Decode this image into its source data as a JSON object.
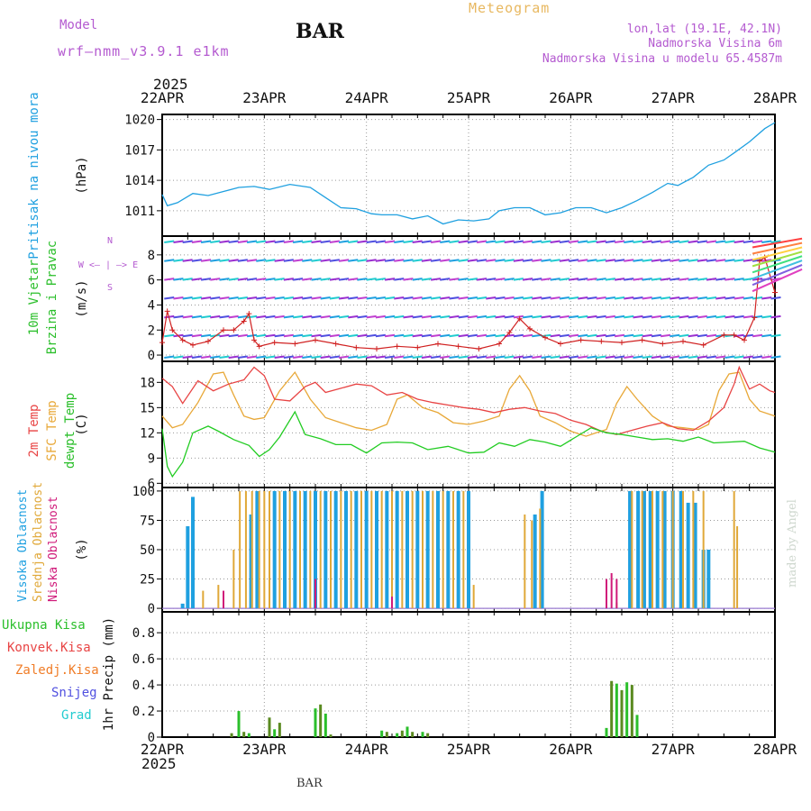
{
  "header": {
    "model_label": "Model",
    "model_name": "wrf—nmm_v3.9.1  e1km",
    "station": "BAR",
    "chart_title": "Meteogram",
    "coords": "lon,lat (19.1E, 42.1N)",
    "elevation": "Nadmorska Visina 6m",
    "model_elevation": "Nadmorska Visina u modelu 65.4587m",
    "footer_station": "BAR",
    "credit": "made by Angel",
    "year_top": "2025",
    "year_bottom": "2025"
  },
  "colors": {
    "pressure": "#1fa0e0",
    "temp2m": "#e84444",
    "sfctemp": "#e8a838",
    "dewpt": "#22cc22",
    "cloud_high": "#1fa0e0",
    "cloud_mid": "#e0a838",
    "cloud_low": "#d01a7a",
    "precip_total": "#2bbf2b",
    "precip_convective": "#e84444",
    "precip_frozen": "#f07d28",
    "snow": "#5050e0",
    "graupel": "#22ccd0",
    "purple_text": "#b45ad0",
    "title_text": "#e8b860"
  },
  "chart_data": [
    {
      "type": "line",
      "x": [
        "22APR",
        "23APR",
        "24APR",
        "25APR",
        "26APR",
        "27APR",
        "28APR"
      ],
      "ylabel": "(hPa)",
      "series_label": "Pritisak na nivou mora",
      "ylim": [
        1008.5,
        1020.5
      ],
      "yticks": [
        1011,
        1014,
        1017,
        1020
      ],
      "grid": true,
      "series": [
        {
          "name": "Pritisak na nivou mora",
          "x": [
            0,
            0.05,
            0.15,
            0.3,
            0.45,
            0.6,
            0.75,
            0.9,
            1.05,
            1.25,
            1.45,
            1.6,
            1.75,
            1.9,
            2.05,
            2.15,
            2.3,
            2.45,
            2.6,
            2.75,
            2.9,
            3.05,
            3.2,
            3.3,
            3.45,
            3.6,
            3.75,
            3.9,
            4.05,
            4.2,
            4.35,
            4.5,
            4.65,
            4.8,
            4.95,
            5.05,
            5.2,
            5.35,
            5.5,
            5.6,
            5.75,
            5.9,
            6.0
          ],
          "values": [
            1012.6,
            1011.5,
            1011.8,
            1012.7,
            1012.5,
            1012.9,
            1013.3,
            1013.4,
            1013.1,
            1013.6,
            1013.3,
            1012.3,
            1011.3,
            1011.2,
            1010.7,
            1010.6,
            1010.6,
            1010.2,
            1010.5,
            1009.7,
            1010.1,
            1010.0,
            1010.2,
            1011.0,
            1011.3,
            1011.3,
            1010.6,
            1010.8,
            1011.3,
            1011.3,
            1010.8,
            1011.3,
            1012.0,
            1012.8,
            1013.7,
            1013.5,
            1014.3,
            1015.5,
            1016.0,
            1016.7,
            1017.8,
            1019.1,
            1019.7
          ]
        }
      ]
    },
    {
      "type": "scatter",
      "x": [
        "22APR",
        "23APR",
        "24APR",
        "25APR",
        "26APR",
        "27APR",
        "28APR"
      ],
      "ylabel": "(m/s)",
      "series_label_1": "10m Vjetar",
      "series_label_2": "Brzina i Pravac",
      "direction_key": "W <— | —> E",
      "direction_n": "N",
      "direction_s": "S",
      "ylim": [
        -0.5,
        9.5
      ],
      "yticks": [
        0,
        2,
        4,
        6,
        8
      ],
      "grid": true,
      "series": [
        {
          "name": "wind speed",
          "x": [
            0,
            0.05,
            0.1,
            0.2,
            0.3,
            0.45,
            0.6,
            0.7,
            0.8,
            0.85,
            0.9,
            0.95,
            1.1,
            1.3,
            1.5,
            1.7,
            1.9,
            2.1,
            2.3,
            2.5,
            2.7,
            2.9,
            3.1,
            3.3,
            3.4,
            3.5,
            3.6,
            3.75,
            3.9,
            4.1,
            4.3,
            4.5,
            4.7,
            4.9,
            5.1,
            5.3,
            5.5,
            5.6,
            5.7,
            5.8,
            5.85,
            5.9,
            6.0
          ],
          "values": [
            1.0,
            3.5,
            2.0,
            1.2,
            0.8,
            1.1,
            2.0,
            2.0,
            2.7,
            3.3,
            1.2,
            0.7,
            1.0,
            0.9,
            1.2,
            0.9,
            0.6,
            0.5,
            0.7,
            0.6,
            0.9,
            0.7,
            0.5,
            0.9,
            1.8,
            2.9,
            2.1,
            1.4,
            0.9,
            1.2,
            1.1,
            1.0,
            1.2,
            0.9,
            1.1,
            0.8,
            1.6,
            1.6,
            1.2,
            3.0,
            7.5,
            7.8,
            5.0
          ]
        }
      ]
    },
    {
      "type": "line",
      "x": [
        "22APR",
        "23APR",
        "24APR",
        "25APR",
        "26APR",
        "27APR",
        "28APR"
      ],
      "ylabel": "(C)",
      "ylim": [
        5.5,
        20.5
      ],
      "yticks": [
        6,
        9,
        12,
        15,
        18
      ],
      "grid": true,
      "series": [
        {
          "name": "2m Temp",
          "x": [
            0,
            0.1,
            0.2,
            0.35,
            0.5,
            0.65,
            0.8,
            0.9,
            1.0,
            1.1,
            1.25,
            1.4,
            1.5,
            1.6,
            1.75,
            1.9,
            2.05,
            2.2,
            2.35,
            2.5,
            2.65,
            2.8,
            2.95,
            3.1,
            3.25,
            3.4,
            3.55,
            3.7,
            3.85,
            4.0,
            4.15,
            4.3,
            4.45,
            4.6,
            4.75,
            4.9,
            5.05,
            5.2,
            5.35,
            5.5,
            5.6,
            5.65,
            5.75,
            5.85,
            5.95,
            6.0
          ],
          "values": [
            18.5,
            17.5,
            15.5,
            18.2,
            17.0,
            17.8,
            18.3,
            19.8,
            18.8,
            16.0,
            15.8,
            17.5,
            18.0,
            16.8,
            17.3,
            17.8,
            17.6,
            16.5,
            16.8,
            16.0,
            15.6,
            15.3,
            15.0,
            14.8,
            14.4,
            14.8,
            15.0,
            14.6,
            14.3,
            13.5,
            13.0,
            12.2,
            11.8,
            12.3,
            12.8,
            13.2,
            12.5,
            12.3,
            13.4,
            15.0,
            17.8,
            19.8,
            17.2,
            17.8,
            17.0,
            16.8
          ]
        },
        {
          "name": "SFC Temp",
          "x": [
            0,
            0.1,
            0.2,
            0.35,
            0.5,
            0.6,
            0.7,
            0.8,
            0.9,
            1.0,
            1.15,
            1.3,
            1.45,
            1.6,
            1.75,
            1.9,
            2.05,
            2.2,
            2.3,
            2.4,
            2.55,
            2.7,
            2.85,
            3.0,
            3.15,
            3.3,
            3.4,
            3.5,
            3.6,
            3.7,
            3.85,
            4.0,
            4.15,
            4.25,
            4.35,
            4.45,
            4.55,
            4.65,
            4.8,
            4.95,
            5.1,
            5.25,
            5.35,
            5.45,
            5.55,
            5.65,
            5.75,
            5.85,
            6.0
          ],
          "values": [
            14.0,
            12.6,
            13.0,
            15.6,
            19.0,
            19.2,
            16.5,
            14.0,
            13.6,
            13.8,
            17.0,
            19.2,
            16.0,
            13.8,
            13.2,
            12.6,
            12.3,
            13.0,
            16.0,
            16.5,
            15.0,
            14.4,
            13.2,
            13.0,
            13.4,
            14.0,
            17.2,
            18.8,
            17.0,
            14.0,
            13.2,
            12.2,
            11.6,
            12.0,
            12.4,
            15.5,
            17.5,
            16.0,
            14.0,
            12.8,
            12.6,
            12.4,
            13.0,
            17.0,
            19.0,
            19.2,
            16.0,
            14.6,
            14.0
          ]
        },
        {
          "name": "dewpt Temp",
          "x": [
            0,
            0.05,
            0.1,
            0.2,
            0.3,
            0.45,
            0.55,
            0.7,
            0.85,
            0.95,
            1.05,
            1.15,
            1.3,
            1.4,
            1.55,
            1.7,
            1.85,
            2.0,
            2.15,
            2.3,
            2.45,
            2.6,
            2.8,
            3.0,
            3.15,
            3.3,
            3.45,
            3.6,
            3.75,
            3.9,
            4.05,
            4.2,
            4.35,
            4.5,
            4.65,
            4.8,
            4.95,
            5.1,
            5.25,
            5.4,
            5.55,
            5.7,
            5.85,
            6.0
          ],
          "values": [
            12.5,
            8.0,
            6.8,
            8.5,
            12.0,
            12.8,
            12.2,
            11.2,
            10.5,
            9.2,
            10.0,
            11.5,
            14.5,
            11.8,
            11.3,
            10.6,
            10.6,
            9.6,
            10.8,
            10.9,
            10.8,
            10.0,
            10.4,
            9.6,
            9.7,
            10.8,
            10.4,
            11.2,
            10.9,
            10.4,
            11.5,
            12.6,
            12.0,
            11.8,
            11.5,
            11.2,
            11.3,
            11.0,
            11.5,
            10.8,
            10.9,
            11.0,
            10.2,
            9.7
          ]
        }
      ]
    },
    {
      "type": "bar",
      "x": [
        "22APR",
        "23APR",
        "24APR",
        "25APR",
        "26APR",
        "27APR",
        "28APR"
      ],
      "ylabel": "(%)",
      "ylim": [
        -3,
        103
      ],
      "yticks": [
        0,
        25,
        50,
        75,
        100
      ],
      "grid": true,
      "series": [
        {
          "name": "Visoka Oblacnost",
          "x": [
            0.2,
            0.25,
            0.3,
            0.87,
            0.93,
            1.1,
            1.2,
            1.3,
            1.4,
            1.5,
            1.6,
            1.7,
            1.8,
            1.9,
            2.0,
            2.1,
            2.2,
            2.3,
            2.4,
            2.5,
            2.6,
            2.7,
            2.8,
            2.9,
            3.0,
            3.65,
            3.72,
            4.58,
            4.66,
            4.72,
            4.78,
            4.85,
            4.92,
            5.0,
            5.08,
            5.15,
            5.22,
            5.3,
            5.35
          ],
          "values": [
            4,
            70,
            95,
            80,
            100,
            100,
            100,
            100,
            100,
            100,
            100,
            100,
            100,
            100,
            100,
            100,
            100,
            100,
            100,
            100,
            100,
            100,
            100,
            100,
            100,
            80,
            100,
            100,
            100,
            100,
            100,
            100,
            100,
            100,
            100,
            90,
            90,
            50,
            50
          ]
        },
        {
          "name": "Srednja Oblacnost",
          "x": [
            0.4,
            0.55,
            0.7,
            0.76,
            0.82,
            0.88,
            0.95,
            1.0,
            1.05,
            1.15,
            1.25,
            1.35,
            1.45,
            1.55,
            1.65,
            1.75,
            1.85,
            1.95,
            2.05,
            2.15,
            2.25,
            2.35,
            2.45,
            2.55,
            2.65,
            2.75,
            2.85,
            2.95,
            3.05,
            3.55,
            3.62,
            3.7,
            4.45,
            4.6,
            4.7,
            4.8,
            4.9,
            5.0,
            5.1,
            5.2,
            5.3,
            5.6,
            5.63
          ],
          "values": [
            15,
            20,
            50,
            100,
            100,
            100,
            100,
            100,
            100,
            100,
            100,
            100,
            100,
            100,
            100,
            100,
            100,
            100,
            100,
            100,
            100,
            100,
            100,
            100,
            100,
            100,
            100,
            100,
            20,
            80,
            75,
            85,
            5,
            100,
            100,
            100,
            100,
            100,
            100,
            100,
            100,
            100,
            70
          ]
        },
        {
          "name": "Niska Oblacnost",
          "x": [
            0.6,
            1.5,
            2.25,
            4.35,
            4.4,
            4.45
          ],
          "values": [
            15,
            25,
            10,
            25,
            30,
            25
          ]
        }
      ]
    },
    {
      "type": "bar",
      "x": [
        "22APR",
        "23APR",
        "24APR",
        "25APR",
        "26APR",
        "27APR",
        "28APR"
      ],
      "ylabel": "1hr Precip (mm)",
      "ylim": [
        0,
        0.96
      ],
      "yticks": [
        0,
        0.2,
        0.4,
        0.6,
        0.8
      ],
      "grid": true,
      "series": [
        {
          "name": "Ukupna Kisa",
          "x": [
            0.68,
            0.75,
            0.8,
            0.85,
            1.05,
            1.1,
            1.15,
            1.5,
            1.55,
            1.6,
            1.65,
            2.15,
            2.2,
            2.3,
            2.35,
            2.4,
            2.45,
            2.55,
            2.6,
            4.35,
            4.4,
            4.45,
            4.5,
            4.55,
            4.6,
            4.65
          ],
          "values": [
            0.03,
            0.2,
            0.04,
            0.03,
            0.15,
            0.06,
            0.11,
            0.22,
            0.25,
            0.18,
            0.02,
            0.05,
            0.04,
            0.03,
            0.05,
            0.08,
            0.04,
            0.04,
            0.03,
            0.07,
            0.43,
            0.41,
            0.36,
            0.42,
            0.4,
            0.17
          ]
        },
        {
          "name": "Konvek.Kisa",
          "x": [],
          "values": []
        },
        {
          "name": "Zaledj.Kisa",
          "x": [],
          "values": []
        },
        {
          "name": "Snijeg",
          "x": [],
          "values": []
        },
        {
          "name": "Grad",
          "x": [],
          "values": []
        }
      ]
    }
  ],
  "labels": {
    "pressure_title": "Pritisak na nivou mora",
    "wind_title_1": "10m Vjetar",
    "wind_title_2": "Brzina i Pravac",
    "t2m": "2m Temp",
    "tsfc": "SFC Temp",
    "tdew": "dewpt Temp",
    "cloud_high": "Visoka Oblacnost",
    "cloud_mid": "Srednja Oblacnost",
    "cloud_low": "Niska Oblacnost",
    "p_total": "Ukupna Kisa",
    "p_conv": "Konvek.Kisa",
    "p_frozen": "Zaledj.Kisa",
    "p_snow": "Snijeg",
    "p_graupel": "Grad"
  }
}
